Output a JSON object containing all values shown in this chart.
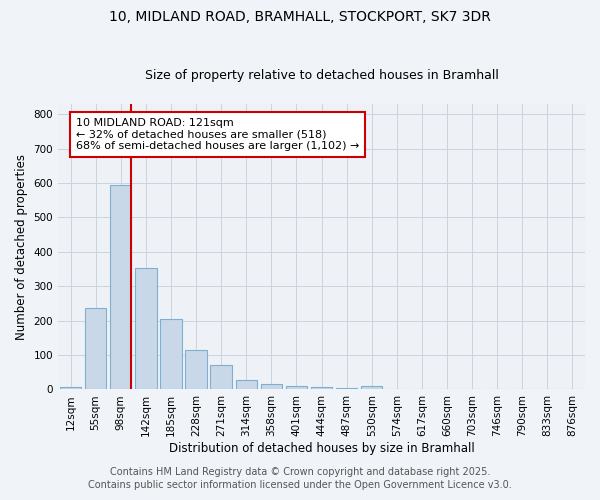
{
  "title": "10, MIDLAND ROAD, BRAMHALL, STOCKPORT, SK7 3DR",
  "subtitle": "Size of property relative to detached houses in Bramhall",
  "xlabel": "Distribution of detached houses by size in Bramhall",
  "ylabel": "Number of detached properties",
  "categories": [
    "12sqm",
    "55sqm",
    "98sqm",
    "142sqm",
    "185sqm",
    "228sqm",
    "271sqm",
    "314sqm",
    "358sqm",
    "401sqm",
    "444sqm",
    "487sqm",
    "530sqm",
    "574sqm",
    "617sqm",
    "660sqm",
    "703sqm",
    "746sqm",
    "790sqm",
    "833sqm",
    "876sqm"
  ],
  "values": [
    8,
    238,
    595,
    353,
    204,
    115,
    72,
    27,
    15,
    10,
    7,
    5,
    10,
    0,
    0,
    0,
    0,
    0,
    0,
    0,
    0
  ],
  "bar_color": "#c9d8e8",
  "bar_edge_color": "#7fafd0",
  "red_line_index": 2,
  "red_line_color": "#cc0000",
  "annotation_line1": "10 MIDLAND ROAD: 121sqm",
  "annotation_line2": "← 32% of detached houses are smaller (518)",
  "annotation_line3": "68% of semi-detached houses are larger (1,102) →",
  "annotation_box_color": "#ffffff",
  "annotation_box_edge_color": "#cc0000",
  "ylim": [
    0,
    830
  ],
  "yticks": [
    0,
    100,
    200,
    300,
    400,
    500,
    600,
    700,
    800
  ],
  "footer_line1": "Contains HM Land Registry data © Crown copyright and database right 2025.",
  "footer_line2": "Contains public sector information licensed under the Open Government Licence v3.0.",
  "background_color": "#f0f4f8",
  "plot_background_color": "#eef2f7",
  "grid_color": "#c8d4e0",
  "title_fontsize": 10,
  "subtitle_fontsize": 9,
  "axis_label_fontsize": 8.5,
  "tick_fontsize": 7.5,
  "annotation_fontsize": 8,
  "footer_fontsize": 7
}
